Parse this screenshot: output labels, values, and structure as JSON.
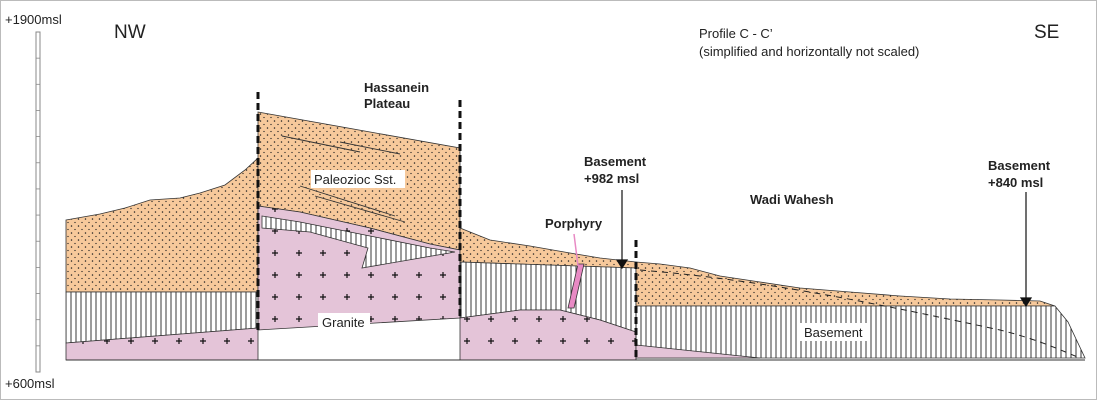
{
  "scale": {
    "top": "+1900msl",
    "bottom": "+600msl"
  },
  "directions": {
    "left": "NW",
    "right": "SE"
  },
  "profile": {
    "title": "Profile C - C’",
    "subtitle": "(simplified and horizontally not scaled)"
  },
  "labels": {
    "plateau_line1": "Hassanein",
    "plateau_line2": "Plateau",
    "paleozoic": "Paleozioc Sst.",
    "granite": "Granite",
    "porphyry": "Porphyry",
    "basement_mid_line1": "Basement",
    "basement_mid_line2": "+982 msl",
    "wadi": "Wadi Wahesh",
    "basement_right_line1": "Basement",
    "basement_right_line2": "+840 msl",
    "basement_unit": "Basement"
  },
  "colors": {
    "sandstone": "#f7c99b",
    "granite": "#e4c4d8",
    "basement": "#ffffff",
    "porphyry": "#e88ac4",
    "ink": "#1a1a1a"
  }
}
